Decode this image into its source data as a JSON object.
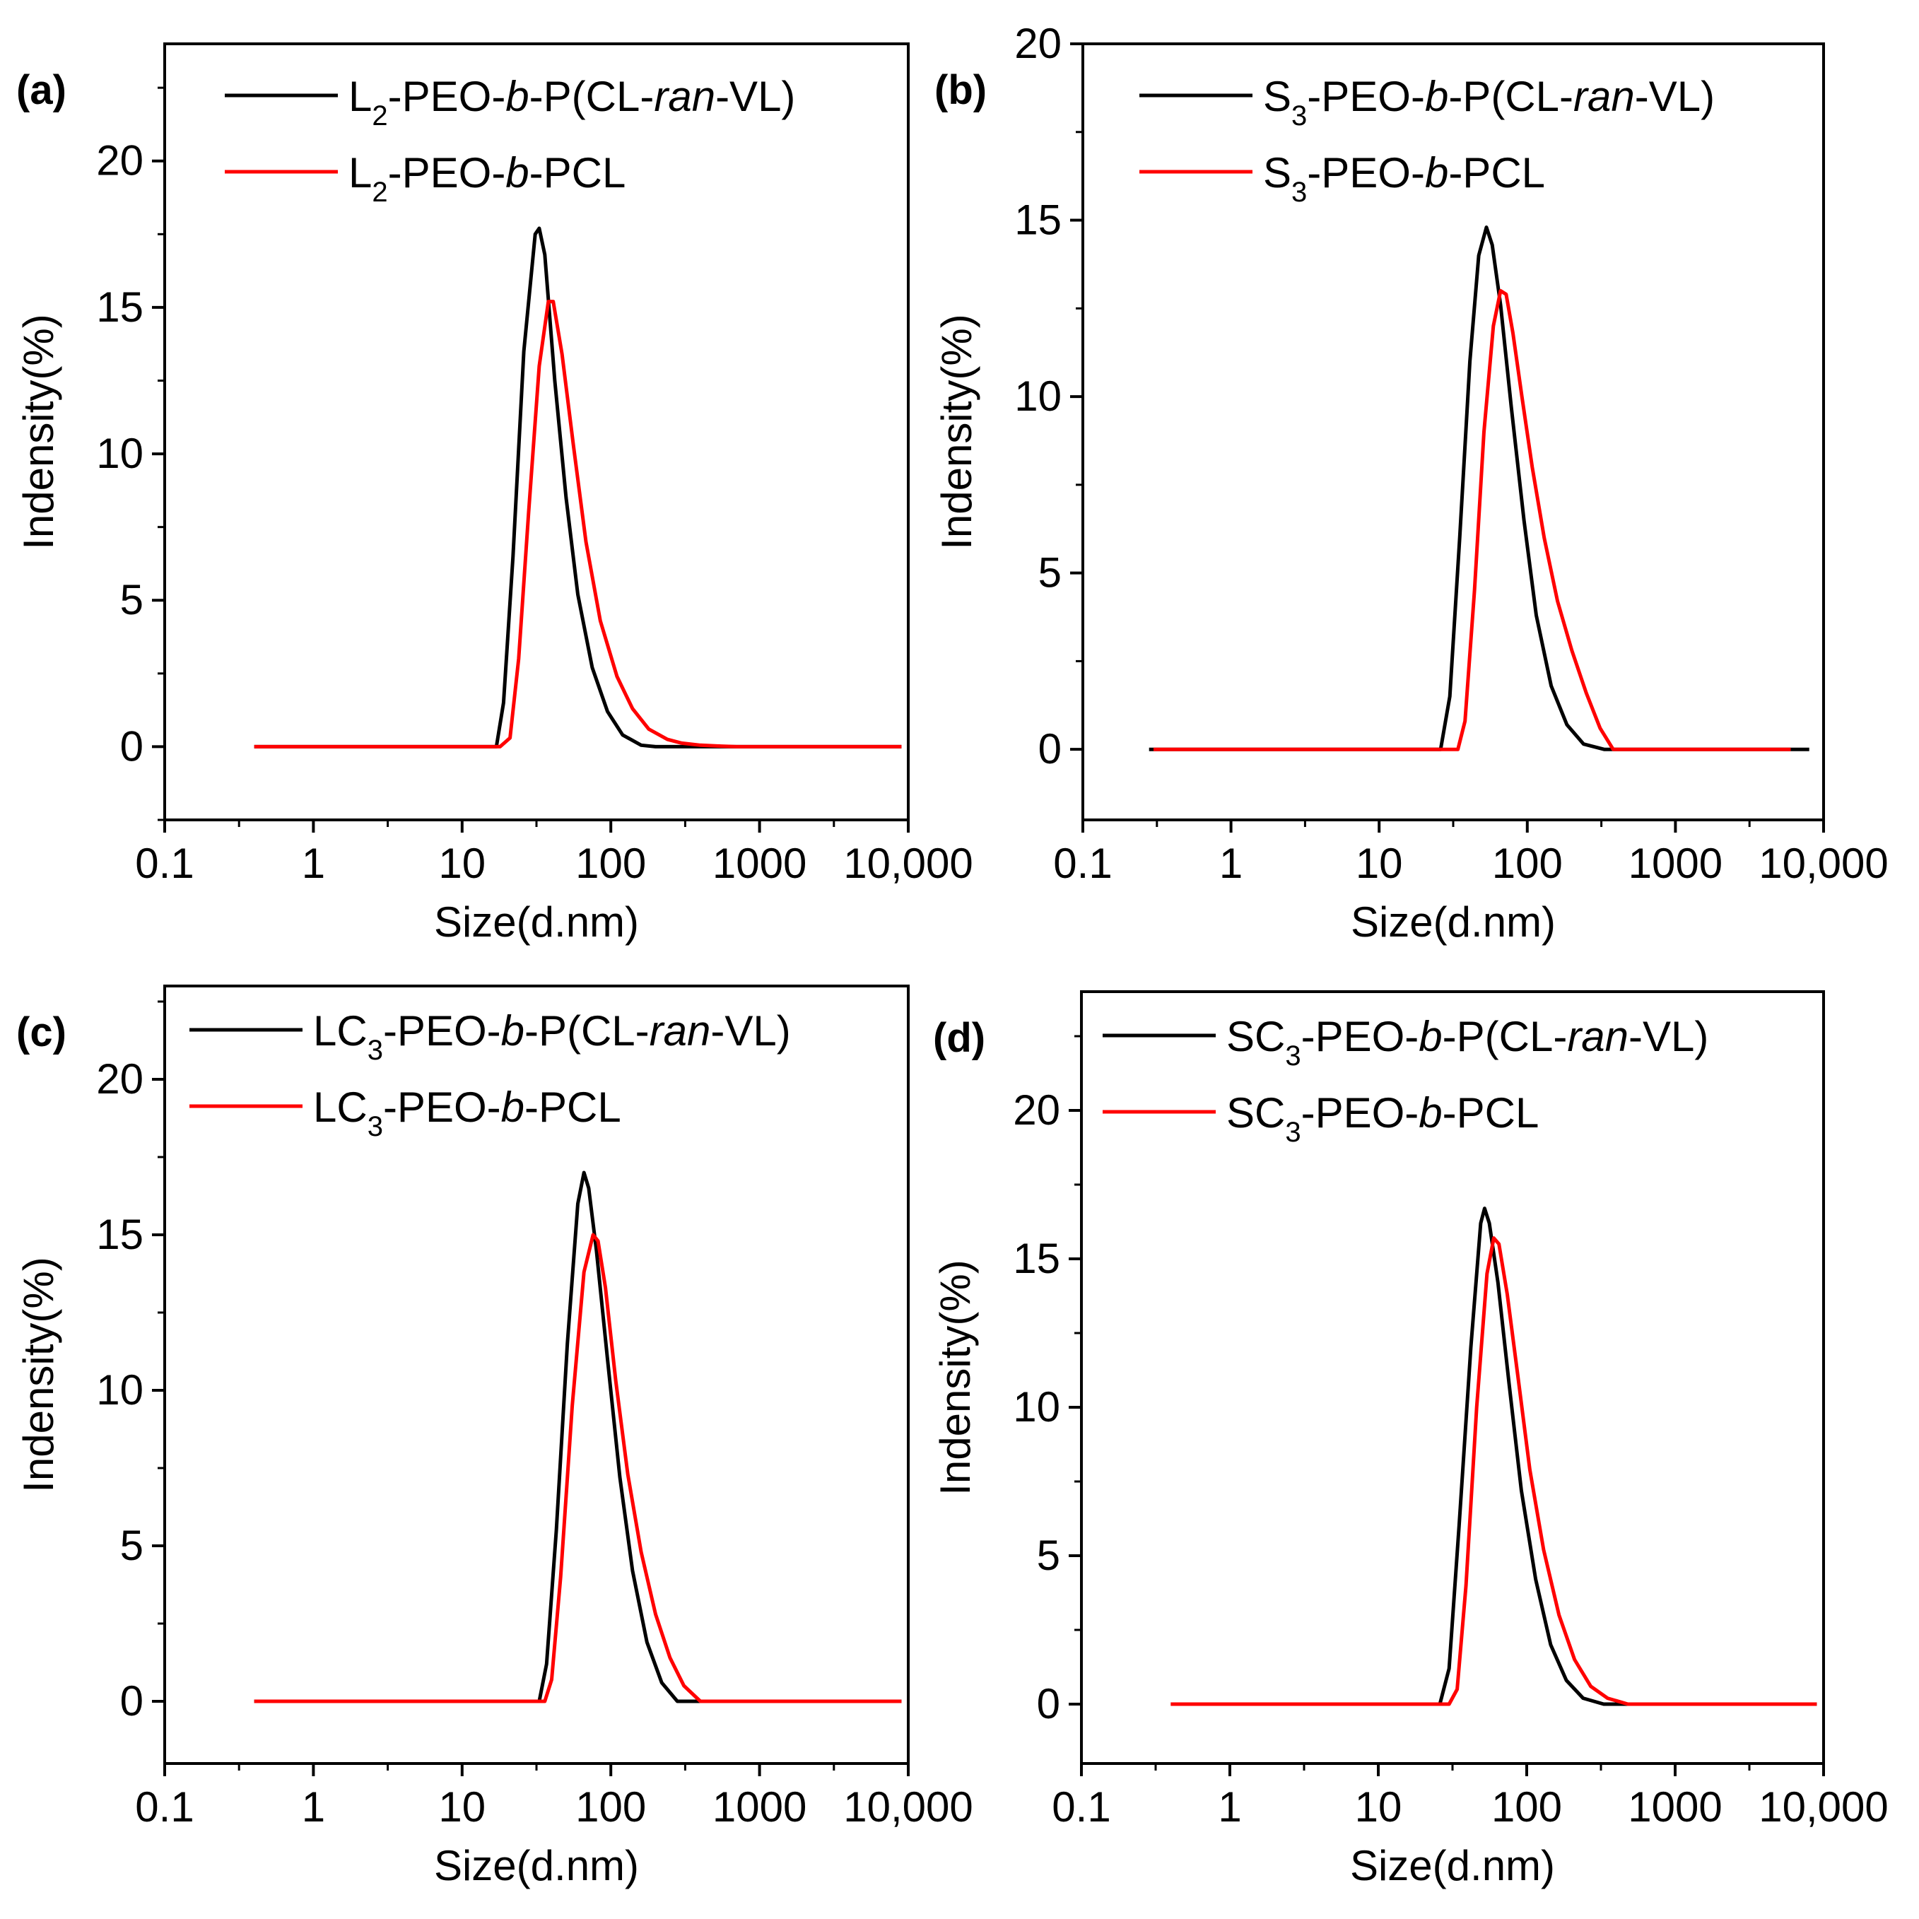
{
  "figure": {
    "charts_count": 4
  },
  "chart_data": [
    {
      "type": "line",
      "panel_label": "(a)",
      "xlabel": "Size(d.nm)",
      "ylabel": "Indensity(%)",
      "x_scale": "log",
      "xlim": [
        0.1,
        10000
      ],
      "ylim": [
        -2.5,
        24
      ],
      "x_ticks": [
        0.1,
        1,
        10,
        100,
        1000,
        10000
      ],
      "x_tick_labels": [
        "0.1",
        "1",
        "10",
        "100",
        "1000",
        "10,000"
      ],
      "y_ticks": [
        0,
        5,
        10,
        15,
        20
      ],
      "y_tick_labels": [
        "0",
        "5",
        "10",
        "15",
        "20"
      ],
      "legend_position": "top-right",
      "series": [
        {
          "name": "L2-PEO-b-P(CL-ran-VL)",
          "legend": {
            "main": "L",
            "sub": "2",
            "pre": "-PEO-",
            "italic1": "b",
            "mid": "-P(CL-",
            "italic2": "ran",
            "post": "-VL)"
          },
          "color": "#000000",
          "x": [
            0.4,
            17,
            19,
            22,
            26,
            31,
            33,
            36,
            42,
            50,
            60,
            75,
            95,
            120,
            160,
            200,
            300,
            600,
            9000
          ],
          "y": [
            0,
            0,
            1.5,
            6.5,
            13.5,
            17.5,
            17.7,
            16.8,
            12.5,
            8.5,
            5.2,
            2.7,
            1.2,
            0.4,
            0.05,
            0,
            0,
            0,
            0
          ]
        },
        {
          "name": "L2-PEO-b-PCL",
          "legend": {
            "main": "L",
            "sub": "2",
            "pre": "-PEO-",
            "italic1": "b",
            "mid": "-PCL",
            "italic2": "",
            "post": ""
          },
          "color": "#ff0000",
          "x": [
            0.4,
            18,
            21,
            24,
            28,
            33,
            38,
            41,
            47,
            56,
            68,
            85,
            110,
            140,
            180,
            240,
            300,
            400,
            550,
            700,
            9000
          ],
          "y": [
            0,
            0,
            0.3,
            3,
            8,
            13,
            15.2,
            15.2,
            13.4,
            10.3,
            7,
            4.3,
            2.4,
            1.3,
            0.6,
            0.25,
            0.12,
            0.05,
            0.02,
            0,
            0
          ]
        }
      ]
    },
    {
      "type": "line",
      "panel_label": "(b)",
      "xlabel": "Size(d.nm)",
      "ylabel": "Indensity(%)",
      "x_scale": "log",
      "xlim": [
        0.1,
        10000
      ],
      "ylim": [
        -2,
        20
      ],
      "x_ticks": [
        0.1,
        1,
        10,
        100,
        1000,
        10000
      ],
      "x_tick_labels": [
        "0.1",
        "1",
        "10",
        "100",
        "1000",
        "10,000"
      ],
      "y_ticks": [
        0,
        5,
        10,
        15,
        20
      ],
      "y_tick_labels": [
        "0",
        "5",
        "10",
        "15",
        "20"
      ],
      "legend_position": "top-right",
      "series": [
        {
          "name": "S3-PEO-b-P(CL-ran-VL)",
          "legend": {
            "main": "S",
            "sub": "3",
            "pre": "-PEO-",
            "italic1": "b",
            "mid": "-P(CL-",
            "italic2": "ran",
            "post": "-VL)"
          },
          "color": "#000000",
          "x": [
            0.28,
            26,
            30,
            35,
            41,
            47,
            53,
            58,
            66,
            78,
            95,
            115,
            145,
            185,
            240,
            330,
            8000
          ],
          "y": [
            0,
            0,
            1.5,
            6,
            11,
            14,
            14.8,
            14.3,
            12.6,
            9.7,
            6.5,
            3.8,
            1.8,
            0.7,
            0.15,
            0,
            0
          ]
        },
        {
          "name": "S3-PEO-b-PCL",
          "legend": {
            "main": "S",
            "sub": "3",
            "pre": "-PEO-",
            "italic1": "b",
            "mid": "-PCL",
            "italic2": "",
            "post": ""
          },
          "color": "#ff0000",
          "x": [
            0.3,
            34,
            38,
            44,
            51,
            59,
            66,
            72,
            80,
            92,
            108,
            130,
            160,
            200,
            250,
            310,
            380,
            6000
          ],
          "y": [
            0,
            0,
            0.8,
            4.5,
            9,
            12,
            13,
            12.9,
            11.8,
            10,
            8,
            6,
            4.2,
            2.8,
            1.6,
            0.6,
            0,
            0
          ]
        }
      ]
    },
    {
      "type": "line",
      "panel_label": "(c)",
      "xlabel": "Size(d.nm)",
      "ylabel": "Indensity(%)",
      "x_scale": "log",
      "xlim": [
        0.1,
        10000
      ],
      "ylim": [
        -2,
        23
      ],
      "x_ticks": [
        0.1,
        1,
        10,
        100,
        1000,
        10000
      ],
      "x_tick_labels": [
        "0.1",
        "1",
        "10",
        "100",
        "1000",
        "10,000"
      ],
      "y_ticks": [
        0,
        5,
        10,
        15,
        20
      ],
      "y_tick_labels": [
        "0",
        "5",
        "10",
        "15",
        "20"
      ],
      "legend_position": "top-right",
      "series": [
        {
          "name": "LC3-PEO-b-P(CL-ran-VL)",
          "legend": {
            "main": "LC",
            "sub": "3",
            "pre": "-PEO-",
            "italic1": "b",
            "mid": "-P(CL-",
            "italic2": "ran",
            "post": "-VL)"
          },
          "color": "#000000",
          "x": [
            0.4,
            33,
            37,
            43,
            51,
            60,
            66,
            71,
            80,
            95,
            115,
            140,
            175,
            220,
            280,
            9000
          ],
          "y": [
            0,
            0,
            1.2,
            5.5,
            11.5,
            16,
            17,
            16.5,
            14.5,
            11,
            7.2,
            4.2,
            1.9,
            0.6,
            0,
            0
          ]
        },
        {
          "name": "LC3-PEO-b-PCL",
          "legend": {
            "main": "LC",
            "sub": "3",
            "pre": "-PEO-",
            "italic1": "b",
            "mid": "-PCL",
            "italic2": "",
            "post": ""
          },
          "color": "#ff0000",
          "x": [
            0.4,
            36,
            40,
            46,
            55,
            66,
            76,
            82,
            92,
            108,
            130,
            160,
            200,
            250,
            310,
            400,
            9000
          ],
          "y": [
            0,
            0,
            0.7,
            4,
            9.5,
            13.8,
            15,
            14.8,
            13.3,
            10.3,
            7.3,
            4.8,
            2.8,
            1.4,
            0.5,
            0,
            0
          ]
        }
      ]
    },
    {
      "type": "line",
      "panel_label": "(d)",
      "xlabel": "Size(d.nm)",
      "ylabel": "Indensity(%)",
      "x_scale": "log",
      "xlim": [
        0.1,
        10000
      ],
      "ylim": [
        -2,
        24
      ],
      "x_ticks": [
        0.1,
        1,
        10,
        100,
        1000,
        10000
      ],
      "x_tick_labels": [
        "0.1",
        "1",
        "10",
        "100",
        "1000",
        "10,000"
      ],
      "y_ticks": [
        0,
        5,
        10,
        15,
        20
      ],
      "y_tick_labels": [
        "0",
        "5",
        "10",
        "15",
        "20"
      ],
      "legend_position": "top-right",
      "series": [
        {
          "name": "SC3-PEO-b-P(CL-ran-VL)",
          "legend": {
            "main": "SC",
            "sub": "3",
            "pre": "-PEO-",
            "italic1": "b",
            "mid": "-P(CL-",
            "italic2": "ran",
            "post": "-VL)"
          },
          "color": "#000000",
          "x": [
            0.4,
            26,
            30,
            35,
            42,
            49,
            52,
            56,
            64,
            76,
            92,
            115,
            145,
            185,
            240,
            330,
            9000
          ],
          "y": [
            0,
            0,
            1.2,
            6,
            12,
            16.2,
            16.7,
            16.2,
            14.2,
            10.8,
            7.2,
            4.2,
            2,
            0.8,
            0.2,
            0,
            0
          ]
        },
        {
          "name": "SC3-PEO-b-PCL",
          "legend": {
            "main": "SC",
            "sub": "3",
            "pre": "-PEO-",
            "italic1": "b",
            "mid": "-PCL",
            "italic2": "",
            "post": ""
          },
          "color": "#ff0000",
          "x": [
            0.4,
            30,
            34,
            39,
            46,
            54,
            60,
            65,
            74,
            88,
            105,
            130,
            165,
            210,
            270,
            350,
            480,
            9000
          ],
          "y": [
            0,
            0,
            0.5,
            4,
            10,
            14.5,
            15.7,
            15.5,
            13.8,
            10.9,
            7.9,
            5.2,
            3,
            1.5,
            0.6,
            0.2,
            0,
            0
          ]
        }
      ]
    }
  ]
}
